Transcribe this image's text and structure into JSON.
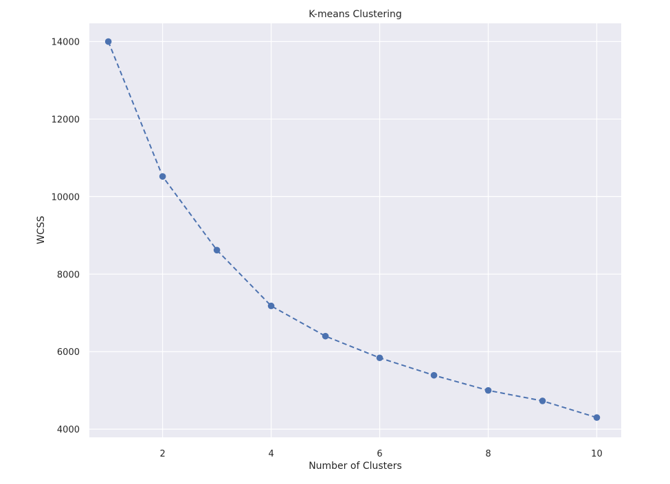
{
  "chart_data": {
    "type": "line",
    "title": "K-means Clustering",
    "xlabel": "Number of Clusters",
    "ylabel": "WCSS",
    "x": [
      1,
      2,
      3,
      4,
      5,
      6,
      7,
      8,
      9,
      10
    ],
    "series": [
      {
        "values": [
          14000,
          10520,
          8620,
          7180,
          6400,
          5840,
          5390,
          5000,
          4730,
          4300
        ],
        "color": "#4c72b0",
        "line_style": "dashed",
        "marker": "circle"
      }
    ],
    "xlim": [
      0.65,
      10.45
    ],
    "ylim": [
      3790,
      14470
    ],
    "xticks": [
      2,
      4,
      6,
      8,
      10
    ],
    "yticks": [
      4000,
      6000,
      8000,
      10000,
      12000,
      14000
    ],
    "grid": true,
    "background_color": "#eaeaf2",
    "grid_color": "#ffffff"
  }
}
